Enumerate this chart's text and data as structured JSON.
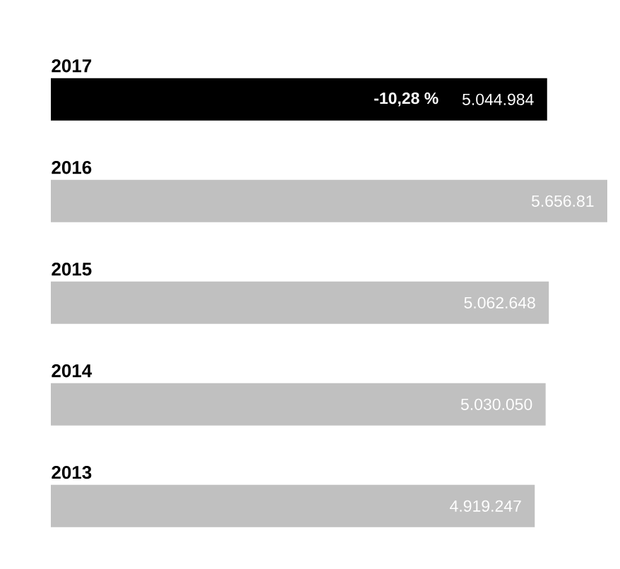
{
  "chart_data": {
    "type": "bar",
    "orientation": "horizontal",
    "categories": [
      "2017",
      "2016",
      "2015",
      "2014",
      "2013"
    ],
    "values": [
      5044984,
      5656810,
      5062648,
      5030050,
      4919247
    ],
    "value_labels": [
      "5.044.984",
      "5.656.81",
      "5.062.648",
      "5.030.050",
      "4.919.247"
    ],
    "colors": [
      "#000000",
      "#c0c0c0",
      "#c0c0c0",
      "#c0c0c0",
      "#c0c0c0"
    ],
    "annotations": [
      "-10,28 %"
    ]
  }
}
